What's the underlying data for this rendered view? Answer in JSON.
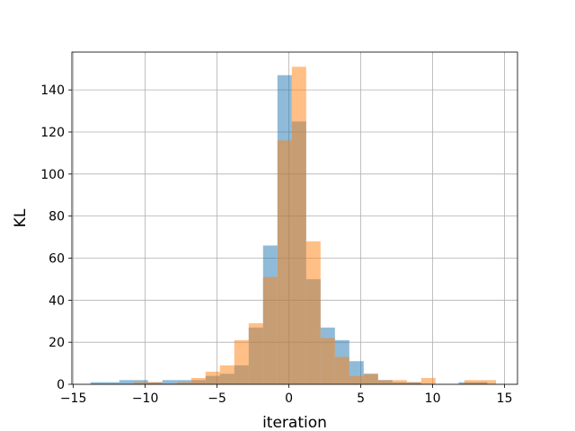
{
  "chart_data": {
    "type": "bar",
    "xlabel": "iteration",
    "ylabel": "KL",
    "xlim": [
      -15.1,
      15.9
    ],
    "ylim": [
      0,
      158
    ],
    "x_ticks": [
      -15,
      -10,
      -5,
      0,
      5,
      10,
      15
    ],
    "x_tick_labels": [
      "−15",
      "−10",
      "−5",
      "0",
      "5",
      "10",
      "15"
    ],
    "y_ticks": [
      0,
      20,
      40,
      60,
      80,
      100,
      120,
      140
    ],
    "y_tick_labels": [
      "0",
      "20",
      "40",
      "60",
      "80",
      "100",
      "120",
      "140"
    ],
    "grid": true,
    "legend": "none",
    "series": [
      {
        "color": "#1f77b4",
        "opacity": 0.5,
        "bins": [
          {
            "x0": -13.8,
            "x1": -12.8,
            "count": 1
          },
          {
            "x0": -12.8,
            "x1": -11.8,
            "count": 1
          },
          {
            "x0": -11.8,
            "x1": -10.8,
            "count": 2
          },
          {
            "x0": -10.8,
            "x1": -9.8,
            "count": 2
          },
          {
            "x0": -9.8,
            "x1": -8.8,
            "count": 1
          },
          {
            "x0": -8.8,
            "x1": -7.8,
            "count": 2
          },
          {
            "x0": -7.8,
            "x1": -6.8,
            "count": 2
          },
          {
            "x0": -6.8,
            "x1": -5.8,
            "count": 2
          },
          {
            "x0": -5.8,
            "x1": -4.8,
            "count": 4
          },
          {
            "x0": -4.8,
            "x1": -3.8,
            "count": 5
          },
          {
            "x0": -3.8,
            "x1": -2.8,
            "count": 9
          },
          {
            "x0": -2.8,
            "x1": -1.8,
            "count": 27
          },
          {
            "x0": -1.8,
            "x1": -0.8,
            "count": 66
          },
          {
            "x0": -0.8,
            "x1": 0.2,
            "count": 147
          },
          {
            "x0": 0.2,
            "x1": 1.2,
            "count": 125
          },
          {
            "x0": 1.2,
            "x1": 2.2,
            "count": 50
          },
          {
            "x0": 2.2,
            "x1": 3.2,
            "count": 27
          },
          {
            "x0": 3.2,
            "x1": 4.2,
            "count": 21
          },
          {
            "x0": 4.2,
            "x1": 5.2,
            "count": 11
          },
          {
            "x0": 5.2,
            "x1": 6.2,
            "count": 5
          },
          {
            "x0": 6.2,
            "x1": 7.2,
            "count": 2
          },
          {
            "x0": 7.2,
            "x1": 8.2,
            "count": 1
          },
          {
            "x0": 8.2,
            "x1": 9.2,
            "count": 1
          },
          {
            "x0": 11.8,
            "x1": 12.8,
            "count": 1
          },
          {
            "x0": 12.8,
            "x1": 13.8,
            "count": 1
          }
        ]
      },
      {
        "color": "#ff7f0e",
        "opacity": 0.5,
        "bins": [
          {
            "x0": -10.8,
            "x1": -9.8,
            "count": 1
          },
          {
            "x0": -9.8,
            "x1": -8.8,
            "count": 1
          },
          {
            "x0": -7.8,
            "x1": -6.8,
            "count": 1
          },
          {
            "x0": -6.8,
            "x1": -5.8,
            "count": 3
          },
          {
            "x0": -5.8,
            "x1": -4.8,
            "count": 6
          },
          {
            "x0": -4.8,
            "x1": -3.8,
            "count": 9
          },
          {
            "x0": -3.8,
            "x1": -2.8,
            "count": 21
          },
          {
            "x0": -2.8,
            "x1": -1.8,
            "count": 29
          },
          {
            "x0": -1.8,
            "x1": -0.8,
            "count": 51
          },
          {
            "x0": -0.8,
            "x1": 0.2,
            "count": 116
          },
          {
            "x0": 0.2,
            "x1": 1.2,
            "count": 151
          },
          {
            "x0": 1.2,
            "x1": 2.2,
            "count": 68
          },
          {
            "x0": 2.2,
            "x1": 3.2,
            "count": 22
          },
          {
            "x0": 3.2,
            "x1": 4.2,
            "count": 13
          },
          {
            "x0": 4.2,
            "x1": 5.2,
            "count": 4
          },
          {
            "x0": 5.2,
            "x1": 6.2,
            "count": 5
          },
          {
            "x0": 6.2,
            "x1": 7.2,
            "count": 2
          },
          {
            "x0": 7.2,
            "x1": 8.2,
            "count": 2
          },
          {
            "x0": 8.2,
            "x1": 9.2,
            "count": 1
          },
          {
            "x0": 9.2,
            "x1": 10.2,
            "count": 3
          },
          {
            "x0": 12.2,
            "x1": 13.2,
            "count": 2
          },
          {
            "x0": 13.2,
            "x1": 14.4,
            "count": 2
          }
        ]
      }
    ]
  }
}
